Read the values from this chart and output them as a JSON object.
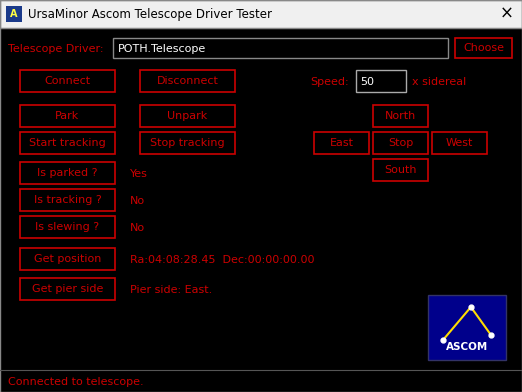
{
  "bg_color": "#000000",
  "titlebar_color": "#f0f0f0",
  "titlebar_text_color": "#000000",
  "title_text": "UrsaMinor Ascom Telescope Driver Tester",
  "red": "#cc0000",
  "white": "#ffffff",
  "dark_blue": "#00008b",
  "button_edge": "#cc0000",
  "button_fill": "#000000",
  "button_text": "#cc0000",
  "gray_edge": "#888888",
  "telescope_driver_label": "Telescope Driver:",
  "telescope_driver_value": "POTH.Telescope",
  "choose_btn": "Choose",
  "speed_label": "Speed:",
  "speed_value": "50",
  "speed_unit": "x sidereal",
  "connect_btn": "Connect",
  "disconnect_btn": "Disconnect",
  "park_btn": "Park",
  "unpark_btn": "Unpark",
  "start_tracking_btn": "Start tracking",
  "stop_tracking_btn": "Stop tracking",
  "is_parked_btn": "Is parked ?",
  "is_parked_val": "Yes",
  "is_tracking_btn": "Is tracking ?",
  "is_tracking_val": "No",
  "is_slewing_btn": "Is slewing ?",
  "is_slewing_val": "No",
  "get_position_btn": "Get position",
  "position_val": "Ra:04:08:28.45  Dec:00:00:00.00",
  "get_pier_btn": "Get pier side",
  "pier_val": "Pier side: East.",
  "north_btn": "North",
  "east_btn": "East",
  "stop_btn": "Stop",
  "west_btn": "West",
  "south_btn": "South",
  "status_text": "Connected to telescope.",
  "ascom_text": "ASCOM"
}
